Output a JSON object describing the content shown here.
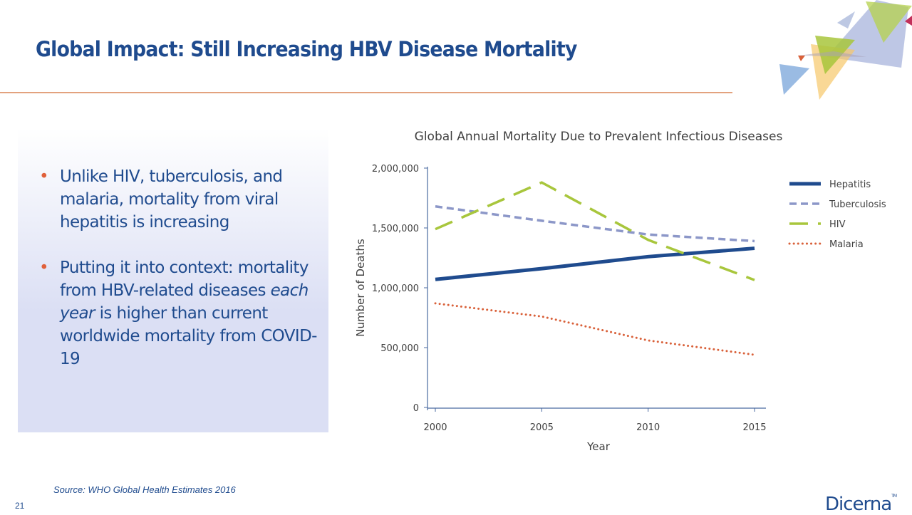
{
  "slide": {
    "title": "Global Impact: Still Increasing HBV Disease Mortality",
    "bullets": [
      "Unlike HIV, tuberculosis, and malaria, mortality from viral hepatitis is increasing",
      "Putting it into context: mortality from HBV-related diseases {each year} is higher than current worldwide mortality from COVID-19"
    ],
    "source": "Source: WHO Global Health Estimates 2016",
    "page_number": "21",
    "logo": "Dicerna",
    "logo_tm": "TM"
  },
  "chart_data": {
    "type": "line",
    "title": "Global Annual Mortality Due to Prevalent Infectious Diseases",
    "xlabel": "Year",
    "ylabel": "Number of Deaths",
    "x": [
      2000,
      2005,
      2010,
      2015
    ],
    "xlim": [
      2000,
      2015
    ],
    "ylim": [
      0,
      2000000
    ],
    "yticks": [
      0,
      500000,
      1000000,
      1500000,
      2000000
    ],
    "ytick_labels": [
      "0",
      "500,000",
      "1,000,000",
      "1,500,000",
      "2,000,000"
    ],
    "xtick_labels": [
      "2000",
      "2005",
      "2010",
      "2015"
    ],
    "legend": "right",
    "grid": false,
    "series": [
      {
        "name": "Hepatitis",
        "color": "#1f4b8e",
        "style": "solid",
        "values": [
          1070000,
          1160000,
          1260000,
          1330000
        ]
      },
      {
        "name": "Tuberculosis",
        "color": "#8c97c8",
        "style": "dashed",
        "values": [
          1680000,
          1560000,
          1445000,
          1390000
        ]
      },
      {
        "name": "HIV",
        "color": "#a8c63c",
        "style": "longdash",
        "values": [
          1490000,
          1880000,
          1400000,
          1065000
        ]
      },
      {
        "name": "Malaria",
        "color": "#d9613a",
        "style": "dotted",
        "values": [
          870000,
          760000,
          560000,
          440000
        ]
      }
    ]
  }
}
